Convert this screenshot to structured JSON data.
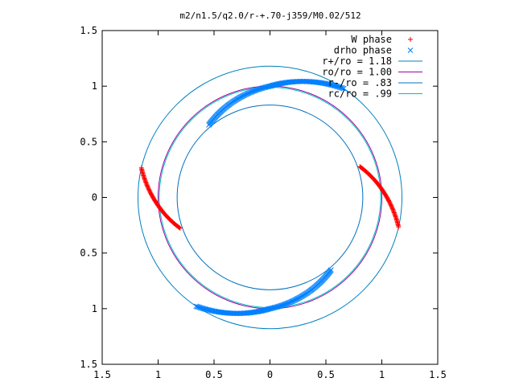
{
  "chart_data": {
    "type": "scatter",
    "title": "m2/n1.5/q2.0/r-+.70-j359/M0.02/512",
    "xlim": [
      -1.5,
      1.5
    ],
    "ylim": [
      -1.5,
      1.5
    ],
    "x_tick_values": [
      -1.5,
      -1,
      -0.5,
      0,
      0.5,
      1,
      1.5
    ],
    "x_tick_labels": [
      "1.5",
      "1",
      "0.5",
      "0",
      "0.5",
      "1",
      "1.5"
    ],
    "y_tick_values": [
      1.5,
      1,
      0.5,
      0,
      -0.5,
      -1,
      -1.5
    ],
    "y_tick_labels": [
      "1.5",
      "1",
      "0.5",
      "0",
      "0.5",
      "1",
      "1.5"
    ],
    "grid": false,
    "legend_position": "top-right",
    "colors": {
      "w_phase": "#ff0000",
      "drho_phase": "#0080ff",
      "r_plus": "#0080c0",
      "ro": "#a000a0",
      "r_minus": "#0070c0",
      "rc": "#00c0c0"
    },
    "circles": [
      {
        "label": "r+/ro = 1.18",
        "radius": 1.18,
        "color": "#0080c0"
      },
      {
        "label": "ro/ro = 1.00",
        "radius": 1.0,
        "color": "#a000a0"
      },
      {
        "label": "r-/ro = .83",
        "radius": 0.83,
        "color": "#0070c0"
      },
      {
        "label": "rc/ro = .99",
        "radius": 0.99,
        "color": "#00c0c0"
      }
    ],
    "series": [
      {
        "name": "W phase",
        "marker": "+",
        "color": "#ff0000",
        "arcs": [
          {
            "r_start": 0.85,
            "r_end": 1.18,
            "theta_start": 199,
            "theta_end": 167
          },
          {
            "r_start": 0.85,
            "r_end": 1.18,
            "theta_start": 19,
            "theta_end": -13
          }
        ]
      },
      {
        "name": "drho phase",
        "marker": "x",
        "color": "#0080ff",
        "arcs": [
          {
            "r_start": 1.18,
            "r_end": 1.0,
            "theta_start": 236,
            "theta_end": 270
          },
          {
            "r_start": 1.0,
            "r_end": 0.85,
            "theta_start": 270,
            "theta_end": 310
          },
          {
            "r_start": 1.18,
            "r_end": 1.0,
            "theta_start": 56,
            "theta_end": 90
          },
          {
            "r_start": 1.0,
            "r_end": 0.85,
            "theta_start": 90,
            "theta_end": 130
          }
        ]
      }
    ]
  }
}
